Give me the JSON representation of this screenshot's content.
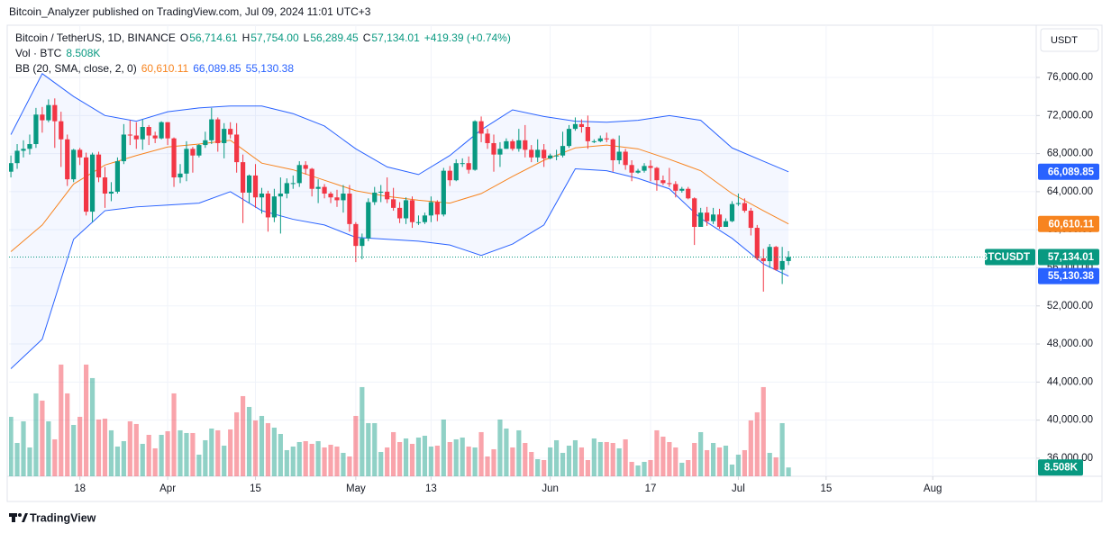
{
  "chart_data": {
    "type": "candlestick",
    "title": "Bitcoin_Analyzer published on TradingView.com, Jul 09, 2024 11:01 UTC+3",
    "symbol": "Bitcoin / TetherUS, 1D, BINANCE",
    "ohlc_legend": [
      {
        "key": "O",
        "label": "56,714.61"
      },
      {
        "key": "H",
        "label": "57,754.00"
      },
      {
        "key": "L",
        "label": "56,289.45"
      },
      {
        "key": "C",
        "label": "57,134.01"
      }
    ],
    "change_label": "+419.39 (+0.74%)",
    "volume_title": "Vol · BTC",
    "volume_label": "8.508K",
    "bb_title": "BB (20, SMA, close, 2, 0)",
    "currency": "USDT",
    "symbol_tag": "BTCUSDT",
    "last_price_label": "57,134.01",
    "brand": "TradingView",
    "up_color": "#089981",
    "down_color": "#f23645",
    "grid": true,
    "xlim": [
      -0.3,
      163.5
    ],
    "xticks": [
      {
        "value": 11,
        "label": "18"
      },
      {
        "value": 25,
        "label": "Apr"
      },
      {
        "value": 39,
        "label": "15"
      },
      {
        "value": 55,
        "label": "May"
      },
      {
        "value": 67,
        "label": "13"
      },
      {
        "value": 86,
        "label": "Jun"
      },
      {
        "value": 102,
        "label": "17"
      },
      {
        "value": 116,
        "label": "Jul"
      },
      {
        "value": 130,
        "label": "15"
      },
      {
        "value": 147,
        "label": "Aug"
      }
    ],
    "ylim": [
      34100,
      81300
    ],
    "yticks": [
      {
        "value": 76000,
        "label": "76,000.00"
      },
      {
        "value": 72000,
        "label": "72,000.00"
      },
      {
        "value": 68000,
        "label": "68,000.00"
      },
      {
        "value": 64000,
        "label": "64,000.00"
      },
      {
        "value": 60000,
        "label": "60,000.00"
      },
      {
        "value": 56000,
        "label": "56,000.00"
      },
      {
        "value": 52000,
        "label": "52,000.00"
      },
      {
        "value": 48000,
        "label": "48,000.00"
      },
      {
        "value": 44000,
        "label": "44,000.00"
      },
      {
        "value": 40000,
        "label": "40,000.00"
      },
      {
        "value": 36000,
        "label": "36,000.00"
      }
    ],
    "open": [
      66100,
      67000,
      68300,
      68500,
      69000,
      72100,
      71500,
      73100,
      71400,
      69500,
      65300,
      68400,
      67600,
      61900,
      67900,
      65500,
      63800,
      64000,
      67200,
      70000,
      69900,
      69500,
      70800,
      69900,
      69600,
      71300,
      69600,
      65500,
      65900,
      68500,
      67800,
      68900,
      69400,
      71600,
      69100,
      70600,
      70000,
      67100,
      63900,
      65700,
      63400,
      63800,
      61300,
      63500,
      63800,
      64900,
      64900,
      66800,
      66400,
      64300,
      64500,
      63800,
      63400,
      63100,
      63800,
      60600,
      58300,
      59100,
      62900,
      63900,
      64000,
      63200,
      62300,
      61200,
      63100,
      60800,
      60800,
      61500,
      62900,
      61600,
      66200,
      65200,
      67000,
      67000,
      66300,
      71400,
      70100,
      69100,
      67900,
      68500,
      69300,
      68500,
      69400,
      68400,
      67600,
      68400,
      67500,
      67800,
      67800,
      68800,
      70600,
      71100,
      70800,
      69300,
      69300,
      69600,
      69500,
      67300,
      68200,
      66800,
      66000,
      66200,
      66700,
      66500,
      65200,
      64900,
      64800,
      64100,
      64300,
      63300,
      60300,
      61800,
      60900,
      61600,
      60300,
      60900,
      62700,
      62800,
      62000,
      60200,
      57000,
      56700,
      58200,
      55800,
      56714.61
    ],
    "high": [
      67800,
      69000,
      69400,
      70000,
      72800,
      72900,
      73700,
      73800,
      72400,
      70000,
      68500,
      68600,
      68100,
      68100,
      68200,
      66600,
      65000,
      67600,
      71100,
      71500,
      71300,
      71600,
      71000,
      70300,
      71400,
      71300,
      69700,
      66900,
      69300,
      68700,
      69000,
      70300,
      72800,
      71800,
      71200,
      71300,
      71200,
      67900,
      65800,
      66900,
      64400,
      64100,
      64300,
      65500,
      65400,
      65700,
      67200,
      67200,
      66500,
      65300,
      64800,
      64000,
      64200,
      64700,
      64700,
      60800,
      59600,
      63300,
      64500,
      64700,
      65500,
      64400,
      62900,
      63400,
      63500,
      61500,
      61800,
      63500,
      63100,
      66500,
      66700,
      67400,
      67500,
      67700,
      71500,
      71900,
      70600,
      70000,
      69200,
      69600,
      69500,
      70600,
      71000,
      68900,
      69500,
      69000,
      68000,
      68400,
      70300,
      71000,
      71800,
      71600,
      72000,
      69500,
      69900,
      70200,
      69600,
      69900,
      68500,
      67300,
      66400,
      67000,
      67300,
      66600,
      65700,
      66500,
      65100,
      64500,
      64500,
      63400,
      62300,
      62400,
      62300,
      62200,
      61200,
      63000,
      63800,
      63300,
      62300,
      60500,
      58000,
      58500,
      58300,
      58200,
      57754
    ],
    "low": [
      65500,
      66400,
      67600,
      67900,
      68600,
      70200,
      71300,
      68600,
      66600,
      64600,
      65000,
      66800,
      61500,
      60800,
      65000,
      62300,
      63000,
      63800,
      66900,
      68900,
      68500,
      68400,
      68900,
      69100,
      69500,
      68900,
      64500,
      64900,
      65100,
      66000,
      67600,
      68600,
      69000,
      68200,
      67500,
      69600,
      66000,
      60700,
      62800,
      62300,
      61700,
      59800,
      60800,
      59600,
      63300,
      64300,
      64500,
      65800,
      63500,
      62800,
      63300,
      62800,
      62400,
      61800,
      59800,
      56600,
      56900,
      58800,
      62600,
      62900,
      62800,
      62000,
      60700,
      60600,
      60200,
      60500,
      60600,
      60800,
      60900,
      61400,
      64600,
      65100,
      66600,
      65900,
      66200,
      69200,
      68500,
      66100,
      66600,
      68500,
      68300,
      68200,
      67600,
      67100,
      67100,
      66600,
      67400,
      67300,
      67600,
      68600,
      70400,
      70200,
      68500,
      69100,
      69200,
      69200,
      66100,
      66900,
      66300,
      65100,
      65900,
      66000,
      65100,
      64100,
      64700,
      64500,
      63400,
      63900,
      63200,
      58400,
      60600,
      60400,
      60600,
      60100,
      60300,
      60800,
      62500,
      61800,
      59400,
      56800,
      53500,
      56000,
      55700,
      54300,
      56289.45
    ],
    "close": [
      67000,
      68300,
      68500,
      69000,
      72100,
      71500,
      73100,
      71400,
      69500,
      65300,
      68400,
      67600,
      61900,
      67900,
      65500,
      63800,
      64000,
      67200,
      70000,
      69900,
      69500,
      70800,
      69900,
      69600,
      71300,
      69600,
      65500,
      65900,
      68500,
      67800,
      68900,
      69400,
      71600,
      69100,
      70600,
      70000,
      67100,
      63900,
      65700,
      63400,
      63800,
      61300,
      63500,
      63800,
      64900,
      64900,
      66800,
      66400,
      64300,
      64500,
      63800,
      63400,
      63100,
      63800,
      60600,
      58300,
      59100,
      62900,
      63900,
      64000,
      63200,
      62300,
      61200,
      63100,
      60800,
      60800,
      61500,
      62900,
      61600,
      66200,
      65200,
      67000,
      67000,
      66300,
      71400,
      70100,
      69100,
      67900,
      68500,
      69300,
      68500,
      69400,
      68400,
      67600,
      68400,
      67500,
      67800,
      67800,
      68800,
      70600,
      71100,
      70800,
      69300,
      69300,
      69600,
      69500,
      67300,
      68200,
      66800,
      66000,
      66200,
      66700,
      66500,
      65200,
      64900,
      64800,
      64100,
      64300,
      63300,
      60300,
      61800,
      60900,
      61600,
      60300,
      60900,
      62700,
      62800,
      62000,
      60200,
      57000,
      56700,
      58200,
      55800,
      56714.61,
      57134.01
    ],
    "volume_ylim": [
      0,
      200000
    ],
    "volume": [
      57420,
      32190,
      53070,
      27840,
      80040,
      73080,
      53070,
      35670,
      107880,
      80040,
      49590,
      57420,
      107880,
      94830,
      54810,
      55680,
      44370,
      28710,
      33930,
      53070,
      50460,
      31320,
      40020,
      26970,
      40020,
      43500,
      80040,
      44370,
      41760,
      41760,
      20880,
      34800,
      46110,
      44370,
      29580,
      45240,
      61770,
      77430,
      66990,
      53940,
      58290,
      51330,
      46980,
      40890,
      25230,
      28710,
      33060,
      33930,
      31320,
      33930,
      27840,
      30450,
      28710,
      22620,
      19140,
      58290,
      86130,
      51330,
      51330,
      23490,
      27840,
      42630,
      33060,
      36540,
      31320,
      37410,
      39150,
      28710,
      29580,
      54810,
      33060,
      35670,
      37410,
      28710,
      27840,
      42630,
      19140,
      26100,
      54810,
      46110,
      27840,
      44370,
      32190,
      23490,
      16530,
      15660,
      27840,
      34800,
      22620,
      29580,
      34800,
      27840,
      15660,
      36540,
      33060,
      33060,
      32190,
      26970,
      35670,
      13920,
      10440,
      13920,
      15660,
      44370,
      38280,
      33060,
      27840,
      13050,
      15660,
      32190,
      42630,
      25230,
      32190,
      27840,
      29580,
      11310,
      20880,
      25230,
      53940,
      61770,
      86130,
      22620,
      18270,
      51330,
      8508
    ],
    "bollinger": {
      "band_color": "#2962ff",
      "basis_color": "#f7841f",
      "basis_label": "60,610.11",
      "upper_label": "66,089.85",
      "lower_label": "55,130.38",
      "x": [
        0,
        5,
        10,
        15,
        20,
        25,
        30,
        35,
        40,
        45,
        50,
        55,
        60,
        65,
        70,
        75,
        80,
        85,
        90,
        95,
        100,
        105,
        110,
        115,
        120,
        124
      ],
      "upper": [
        70000,
        76400,
        74000,
        72000,
        71400,
        72400,
        72800,
        73000,
        73000,
        72200,
        70900,
        68500,
        66600,
        65800,
        67800,
        70500,
        72600,
        71900,
        71400,
        71300,
        71500,
        72000,
        71500,
        68600,
        67200,
        66089.85
      ],
      "basis": [
        57700,
        60500,
        64800,
        66800,
        67800,
        68700,
        69000,
        69400,
        67000,
        66300,
        65200,
        64100,
        63500,
        63100,
        62800,
        63800,
        65600,
        67300,
        68600,
        68900,
        68500,
        67400,
        66200,
        63800,
        62000,
        60610.11
      ],
      "lower": [
        45400,
        48500,
        59000,
        62000,
        62400,
        62600,
        62800,
        64000,
        62000,
        61100,
        60500,
        59200,
        59000,
        58800,
        58400,
        57300,
        58500,
        60500,
        66400,
        66200,
        65400,
        64300,
        61200,
        59100,
        56400,
        55130.38
      ]
    }
  }
}
